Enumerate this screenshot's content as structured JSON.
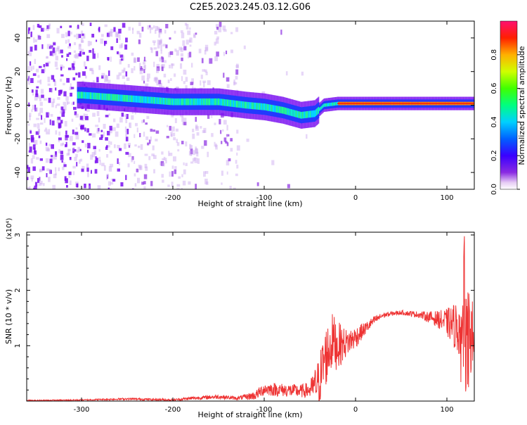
{
  "title": "C2E5.2023.245.03.12.G06",
  "chart_data": [
    {
      "type": "heatmap",
      "xlabel": "Height of straight line (km)",
      "ylabel": "Frequency (Hz)",
      "xlim": [
        -360,
        130
      ],
      "ylim": [
        -50,
        50
      ],
      "x_ticks": [
        -300,
        -200,
        -100,
        0,
        100
      ],
      "y_ticks": [
        -40,
        -20,
        0,
        20,
        40
      ],
      "colorbar": {
        "label": "Normalized spectral amplitude",
        "range": [
          0,
          1
        ],
        "ticks": [
          0.0,
          0.2,
          0.4,
          0.6,
          0.8
        ]
      },
      "trace_center_hz": [
        {
          "x": -300,
          "y": 6
        },
        {
          "x": -250,
          "y": 4
        },
        {
          "x": -200,
          "y": 2
        },
        {
          "x": -150,
          "y": 2
        },
        {
          "x": -120,
          "y": 0
        },
        {
          "x": -100,
          "y": -1
        },
        {
          "x": -80,
          "y": -3
        },
        {
          "x": -60,
          "y": -6
        },
        {
          "x": -45,
          "y": -5
        },
        {
          "x": -35,
          "y": 0
        },
        {
          "x": -20,
          "y": 1
        },
        {
          "x": 0,
          "y": 1
        },
        {
          "x": 50,
          "y": 1
        },
        {
          "x": 100,
          "y": 1
        },
        {
          "x": 130,
          "y": 1
        }
      ],
      "grid": false
    },
    {
      "type": "line",
      "xlabel": "Height of straight line (km)",
      "ylabel": "SNR (10 * v/v)",
      "y_multiplier": "(x10⁴)",
      "xlim": [
        -360,
        130
      ],
      "ylim": [
        0,
        3.05
      ],
      "x_ticks": [
        -300,
        -200,
        -100,
        0,
        100
      ],
      "y_ticks": [
        1,
        2,
        3
      ],
      "line_color": "#ee3333",
      "series": [
        {
          "x": [
            -360,
            -300,
            -250,
            -200,
            -180,
            -150,
            -130,
            -110,
            -100,
            -80,
            -60,
            -50,
            -40,
            -35,
            -30,
            -25,
            -20,
            -10,
            0,
            10,
            20,
            30,
            40,
            50,
            60,
            70,
            80,
            90,
            100,
            110,
            120,
            125,
            130
          ],
          "values": [
            0.01,
            0.02,
            0.04,
            0.02,
            0.05,
            0.08,
            0.05,
            0.1,
            0.22,
            0.2,
            0.18,
            0.2,
            0.35,
            0.7,
            0.9,
            1.1,
            1.0,
            1.05,
            1.15,
            1.3,
            1.45,
            1.55,
            1.58,
            1.6,
            1.58,
            1.56,
            1.52,
            1.48,
            1.42,
            1.35,
            1.25,
            1.2,
            1.1
          ],
          "noise": [
            0.01,
            0.01,
            0.02,
            0.02,
            0.03,
            0.04,
            0.03,
            0.08,
            0.12,
            0.12,
            0.12,
            0.15,
            0.45,
            0.55,
            0.55,
            0.5,
            0.45,
            0.25,
            0.2,
            0.12,
            0.08,
            0.05,
            0.04,
            0.04,
            0.05,
            0.06,
            0.1,
            0.15,
            0.25,
            0.45,
            0.7,
            0.8,
            0.6
          ]
        }
      ],
      "grid": false
    }
  ]
}
